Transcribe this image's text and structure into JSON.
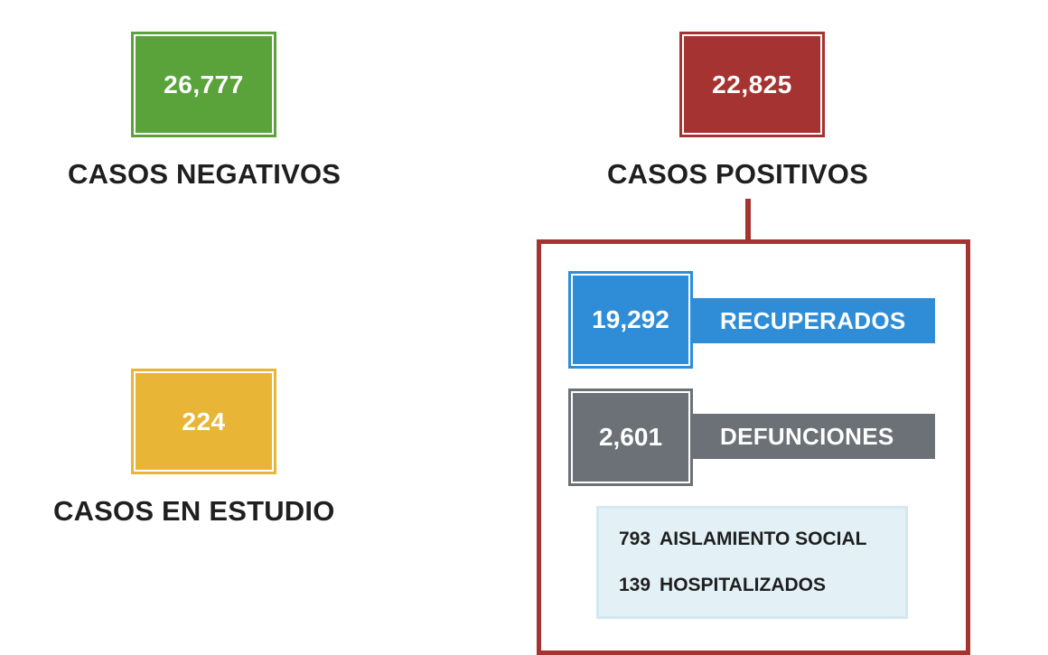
{
  "negatives": {
    "value": "26,777",
    "label": "CASOS NEGATIVOS",
    "color": "#5aa33a"
  },
  "positives": {
    "value": "22,825",
    "label": "CASOS POSITIVOS",
    "color": "#a53331"
  },
  "in_study": {
    "value": "224",
    "label": "CASOS EN ESTUDIO",
    "color": "#e8b536"
  },
  "breakdown": {
    "recovered": {
      "value": "19,292",
      "label": "RECUPERADOS",
      "color": "#2f8dd8"
    },
    "deaths": {
      "value": "2,601",
      "label": "DEFUNCIONES",
      "color": "#6b7177"
    },
    "details": [
      {
        "value": "793",
        "label": "AISLAMIENTO SOCIAL"
      },
      {
        "value": "139",
        "label": "HOSPITALIZADOS"
      }
    ]
  }
}
